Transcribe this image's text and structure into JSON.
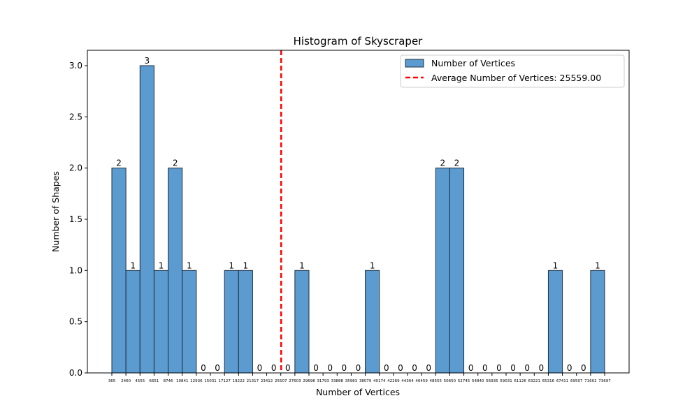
{
  "chart_data": {
    "type": "bar",
    "title": "Histogram of Skyscraper",
    "xlabel": "Number of Vertices",
    "ylabel": "Number of Shapes",
    "ylim": [
      0,
      3.15
    ],
    "yticks": [
      "0.0",
      "0.5",
      "1.0",
      "1.5",
      "2.0",
      "2.5",
      "3.0"
    ],
    "ytick_values": [
      0,
      0.5,
      1.0,
      1.5,
      2.0,
      2.5,
      3.0
    ],
    "bin_edges": [
      "365",
      "2460",
      "4555",
      "6651",
      "8746",
      "10841",
      "12936",
      "15031",
      "17127",
      "19222",
      "21317",
      "23412",
      "25507",
      "27603",
      "29698",
      "31793",
      "33888",
      "35983",
      "38079",
      "40174",
      "42269",
      "44364",
      "46459",
      "48555",
      "50650",
      "52745",
      "54840",
      "56935",
      "59031",
      "61126",
      "63221",
      "65316",
      "67411",
      "69507",
      "71602",
      "73697"
    ],
    "counts": [
      2,
      1,
      3,
      1,
      2,
      1,
      0,
      0,
      1,
      1,
      0,
      0,
      0,
      1,
      0,
      0,
      0,
      0,
      1,
      0,
      0,
      0,
      0,
      2,
      2,
      0,
      0,
      0,
      0,
      0,
      0,
      1,
      0,
      0,
      1
    ],
    "bar_color": "#5b9bd0",
    "bar_edge_color": "#1f2f3f",
    "average": {
      "value": 25559.0,
      "color": "#ff0000",
      "style": "dashed"
    },
    "legend": {
      "placement": "upper-right",
      "entries": [
        "Number of Vertices",
        "Average Number of Vertices: 25559.00"
      ]
    },
    "grid": false
  }
}
